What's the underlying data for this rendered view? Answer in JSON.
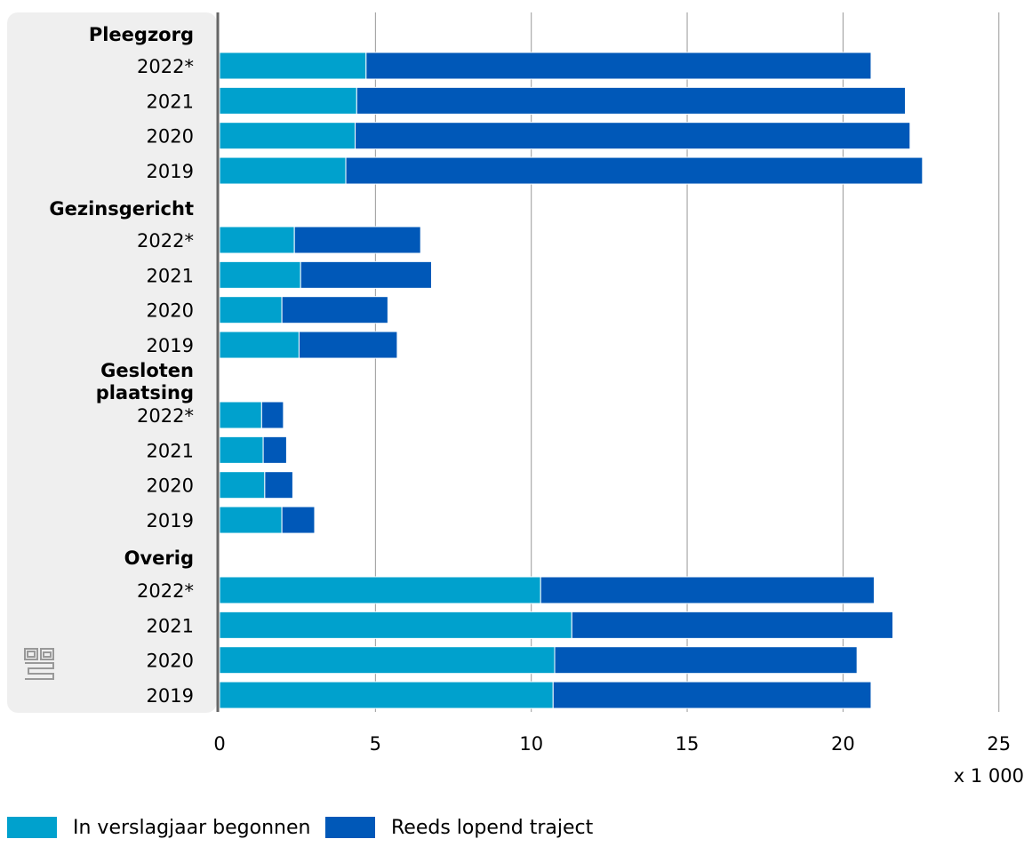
{
  "chart_data": {
    "type": "bar",
    "orientation": "horizontal",
    "stacked": true,
    "groups": [
      {
        "label": "Pleegzorg",
        "rows": [
          {
            "label": "2022*",
            "values": [
              4.7,
              16.2
            ]
          },
          {
            "label": "2021",
            "values": [
              4.4,
              17.6
            ]
          },
          {
            "label": "2020",
            "values": [
              4.35,
              17.8
            ]
          },
          {
            "label": "2019",
            "values": [
              4.05,
              18.5
            ]
          }
        ]
      },
      {
        "label": "Gezinsgericht",
        "rows": [
          {
            "label": "2022*",
            "values": [
              2.4,
              4.05
            ]
          },
          {
            "label": "2021",
            "values": [
              2.6,
              4.2
            ]
          },
          {
            "label": "2020",
            "values": [
              2.0,
              3.4
            ]
          },
          {
            "label": "2019",
            "values": [
              2.55,
              3.15
            ]
          }
        ]
      },
      {
        "label": "Gesloten plaatsing",
        "label_lines": [
          "Gesloten",
          "plaatsing"
        ],
        "rows": [
          {
            "label": "2022*",
            "values": [
              1.35,
              0.7
            ]
          },
          {
            "label": "2021",
            "values": [
              1.4,
              0.75
            ]
          },
          {
            "label": "2020",
            "values": [
              1.45,
              0.9
            ]
          },
          {
            "label": "2019",
            "values": [
              2.0,
              1.05
            ]
          }
        ]
      },
      {
        "label": "Overig",
        "rows": [
          {
            "label": "2022*",
            "values": [
              10.3,
              10.7
            ]
          },
          {
            "label": "2021",
            "values": [
              11.3,
              10.3
            ]
          },
          {
            "label": "2020",
            "values": [
              10.75,
              9.7
            ]
          },
          {
            "label": "2019",
            "values": [
              10.7,
              10.2
            ]
          }
        ]
      }
    ],
    "series": [
      {
        "name": "In verslagjaar begonnen",
        "color": "#00a1cd"
      },
      {
        "name": "Reeds lopend traject",
        "color": "#0058b8"
      }
    ],
    "xlim": [
      0,
      25
    ],
    "xticks": [
      "0",
      "5",
      "10",
      "15",
      "20",
      "25"
    ],
    "x_unit": "x 1 000",
    "grid": true,
    "legend_position": "bottom-left"
  },
  "colors": {
    "panel_bg": "#efefef",
    "axis": "#666666",
    "grid": "#999999",
    "logo": "#999999"
  },
  "logo_icon": "cbs-logo-icon"
}
